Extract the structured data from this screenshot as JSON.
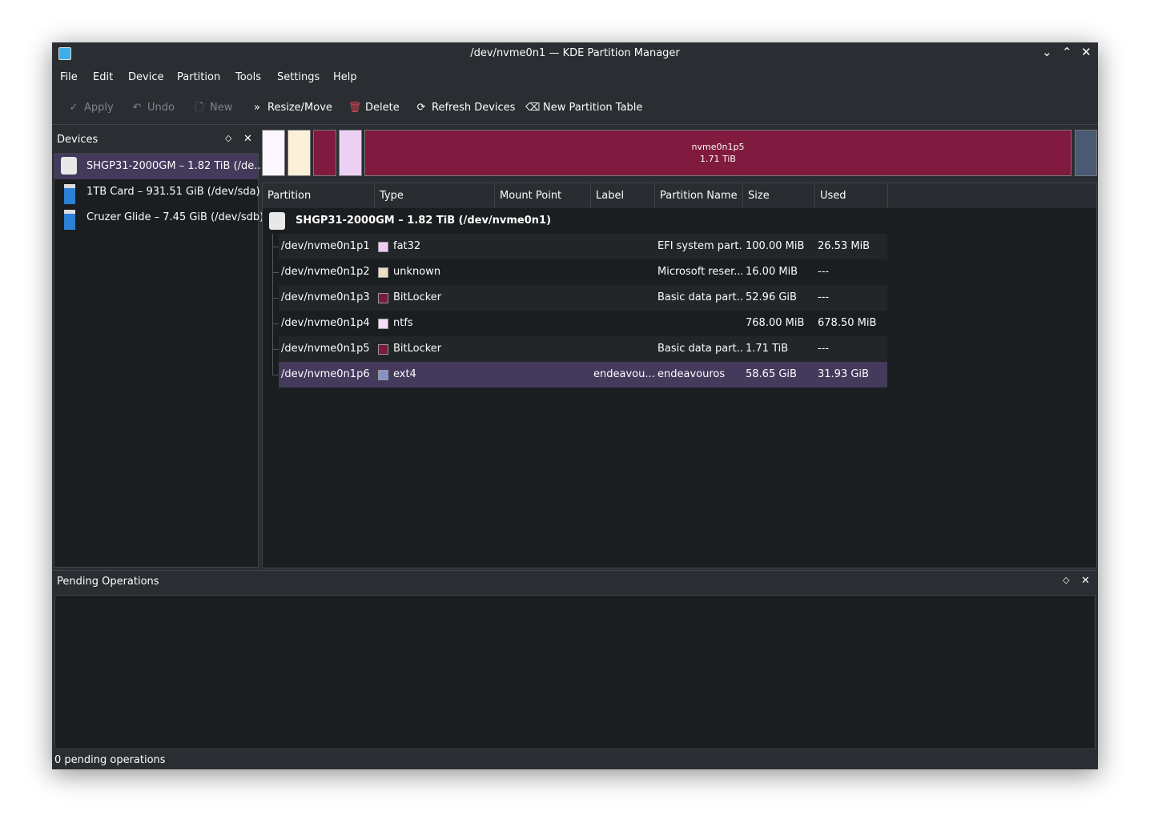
{
  "window": {
    "title": "/dev/nvme0n1 — KDE Partition Manager"
  },
  "menu": [
    "File",
    "Edit",
    "Device",
    "Partition",
    "Tools",
    "Settings",
    "Help"
  ],
  "toolbar": [
    {
      "label": "Apply",
      "enabled": false
    },
    {
      "label": "Undo",
      "enabled": false
    },
    {
      "label": "New",
      "enabled": false
    },
    {
      "label": "Resize/Move",
      "enabled": true
    },
    {
      "label": "Delete",
      "enabled": true
    },
    {
      "label": "Refresh Devices",
      "enabled": true
    },
    {
      "label": "New Partition Table",
      "enabled": true
    }
  ],
  "devices": {
    "title": "Devices",
    "selected": 0,
    "items": [
      {
        "name": "SHGP31-2000GM – 1.82 TiB (/de...",
        "kind": "disk"
      },
      {
        "name": "1TB Card – 931.51 GiB (/dev/sda)",
        "kind": "usb"
      },
      {
        "name": "Cruzer Glide – 7.45 GiB (/dev/sdb)",
        "kind": "usb"
      }
    ]
  },
  "partition_map": {
    "name": "nvme0n1p5",
    "size": "1.71 TiB"
  },
  "table": {
    "columns": [
      {
        "key": "partition",
        "title": "Partition"
      },
      {
        "key": "type",
        "title": "Type"
      },
      {
        "key": "mount_point",
        "title": "Mount Point"
      },
      {
        "key": "label",
        "title": "Label"
      },
      {
        "key": "name",
        "title": "Partition Name"
      },
      {
        "key": "size",
        "title": "Size"
      },
      {
        "key": "used",
        "title": "Used"
      }
    ],
    "device": "SHGP31-2000GM – 1.82 TiB (/dev/nvme0n1)",
    "selected": 5,
    "rows": [
      {
        "partition": "/dev/nvme0n1p1",
        "type": "fat32",
        "color": "#efcdf3",
        "name": "EFI system part...",
        "size": "100.00 MiB",
        "used": "26.53 MiB"
      },
      {
        "partition": "/dev/nvme0n1p2",
        "type": "unknown",
        "color": "#ece0c4",
        "name": "Microsoft reser...",
        "size": "16.00 MiB",
        "used": "---"
      },
      {
        "partition": "/dev/nvme0n1p3",
        "type": "BitLocker",
        "color": "#7c1a3c",
        "name": "Basic data part...",
        "size": "52.96 GiB",
        "used": "---"
      },
      {
        "partition": "/dev/nvme0n1p4",
        "type": "ntfs",
        "color": "#f6dcfa",
        "size": "768.00 MiB",
        "used": "678.50 MiB"
      },
      {
        "partition": "/dev/nvme0n1p5",
        "type": "BitLocker",
        "color": "#7c1a3c",
        "name": "Basic data part...",
        "size": "1.71 TiB",
        "used": "---"
      },
      {
        "partition": "/dev/nvme0n1p6",
        "type": "ext4",
        "color": "#8a90c8",
        "label": "endeavou...",
        "name": "endeavouros",
        "size": "58.65 GiB",
        "used": "31.93 GiB"
      }
    ]
  },
  "pending": {
    "title": "Pending Operations",
    "status": "0 pending operations"
  }
}
